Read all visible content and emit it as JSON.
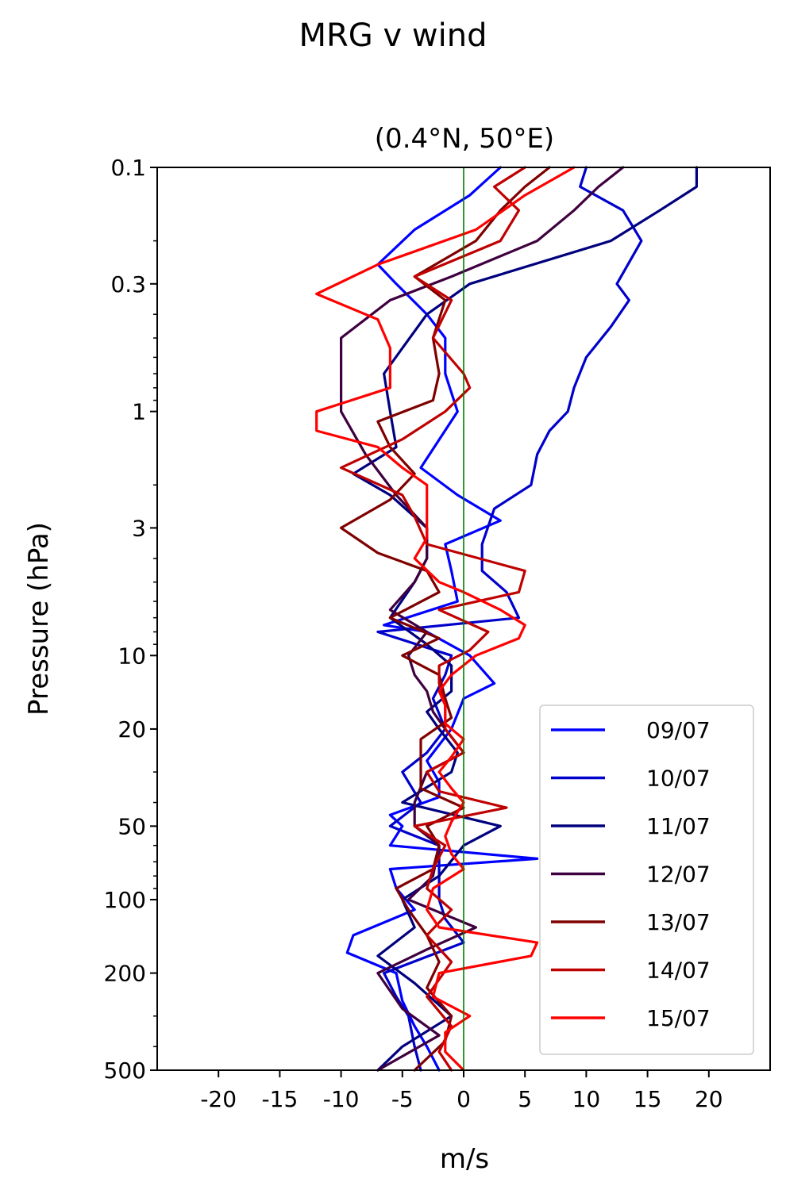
{
  "page": {
    "title": "MRG v wind"
  },
  "chart_data": {
    "type": "line",
    "title": "MRG v wind",
    "subtitle": "(0.4°N, 50°E)",
    "xlabel": "m/s",
    "ylabel": "Pressure (hPa)",
    "xlim": [
      -25,
      25
    ],
    "ylim": [
      500,
      0.1
    ],
    "yscale": "log",
    "x_ticks": [
      -20,
      -15,
      -10,
      -5,
      0,
      5,
      10,
      15,
      20
    ],
    "x_tick_labels": [
      "-20",
      "-15",
      "-10",
      "-5",
      "0",
      "5",
      "10",
      "15",
      "20"
    ],
    "y_ticks": [
      0.1,
      0.3,
      1,
      3,
      10,
      20,
      50,
      100,
      200,
      500
    ],
    "y_tick_labels": [
      "0.1",
      "0.3",
      "1",
      "3",
      "10",
      "20",
      "50",
      "100",
      "200",
      "500"
    ],
    "reference_line": {
      "x": 0,
      "color": "#008000"
    },
    "legend_position": "lower-right",
    "grid": false,
    "series": [
      {
        "name": "09/07",
        "color": "#0000ff",
        "p": [
          0.1,
          0.13,
          0.18,
          0.25,
          0.3,
          0.4,
          0.5,
          0.7,
          1.0,
          1.7,
          2.2,
          2.8,
          3.5,
          4.5,
          6,
          7.5,
          8,
          10,
          13,
          15,
          20,
          27,
          33,
          38,
          45,
          50,
          60,
          68,
          75,
          90,
          110,
          140,
          165,
          200,
          260,
          330,
          400,
          500
        ],
        "values": [
          3,
          0.5,
          -4,
          -7,
          -5.5,
          -3,
          -1.5,
          -1.5,
          -0.5,
          -3.5,
          -0.5,
          3,
          -1.5,
          -1,
          -0.5,
          -6.5,
          -3,
          0.5,
          2.5,
          0,
          -1,
          -3,
          -2,
          -2,
          -6,
          -5,
          -6,
          6,
          -6,
          -5.5,
          -4,
          -9,
          -9.5,
          -5.5,
          -5,
          -4,
          -3,
          -2
        ]
      },
      {
        "name": "10/07",
        "color": "#0000cc",
        "p": [
          0.1,
          0.12,
          0.15,
          0.2,
          0.3,
          0.35,
          0.45,
          0.6,
          0.8,
          1.0,
          1.2,
          1.5,
          2.0,
          2.5,
          3.5,
          4.5,
          5.5,
          7,
          8,
          10,
          12,
          15,
          20,
          25,
          30,
          40,
          50,
          60,
          75,
          100,
          120,
          150,
          200,
          250,
          300,
          400,
          500
        ],
        "values": [
          10,
          9.5,
          13,
          14.5,
          12.5,
          13.5,
          12,
          10,
          9,
          8.5,
          7,
          6,
          5.5,
          2.5,
          1.5,
          1.5,
          3.5,
          4.5,
          -7,
          -1,
          -1.5,
          -2.5,
          -1.5,
          -3,
          -5,
          -3.5,
          -6,
          -2,
          -2,
          -2,
          -1.5,
          0,
          -6.5,
          -5.5,
          -4.5,
          -4,
          -3.5
        ]
      },
      {
        "name": "11/07",
        "color": "#00007f",
        "p": [
          0.1,
          0.12,
          0.15,
          0.2,
          0.3,
          0.4,
          0.55,
          0.7,
          1.0,
          1.4,
          1.8,
          2.2,
          3,
          4,
          5,
          7,
          9,
          11,
          14,
          17,
          20,
          25,
          30,
          40,
          50,
          60,
          80,
          100,
          130,
          170,
          220,
          300,
          400,
          500
        ],
        "values": [
          19,
          19,
          16,
          12,
          0.5,
          -3,
          -5,
          -6.5,
          -6,
          -5.5,
          -9,
          -6,
          -3,
          -3,
          -4,
          -6,
          -3,
          -1,
          -1,
          -3,
          -2,
          -0.5,
          -1,
          -5,
          3,
          0,
          -2,
          -5,
          -4,
          -7,
          -4,
          -1,
          -5,
          -7
        ]
      },
      {
        "name": "12/07",
        "color": "#3f003f",
        "p": [
          0.1,
          0.12,
          0.15,
          0.2,
          0.28,
          0.35,
          0.5,
          0.7,
          1.0,
          1.5,
          2.2,
          3,
          4,
          5,
          6.5,
          8,
          10,
          12,
          14,
          17,
          20,
          25,
          30,
          40,
          50,
          60,
          80,
          100,
          130,
          160,
          200,
          280,
          360,
          500
        ],
        "values": [
          13,
          11,
          9,
          6,
          -1,
          -6,
          -10,
          -10,
          -10,
          -8,
          -5.5,
          -3,
          -3,
          -4,
          -6,
          -3,
          -4.5,
          -4,
          -3,
          -2.5,
          -1.5,
          0,
          -3,
          -4,
          -4,
          -2,
          -2.5,
          -4.5,
          1,
          -3,
          -7,
          -5,
          -2,
          -7
        ]
      },
      {
        "name": "13/07",
        "color": "#7f0000",
        "p": [
          0.1,
          0.12,
          0.15,
          0.2,
          0.28,
          0.35,
          0.5,
          0.7,
          0.9,
          1.1,
          1.4,
          1.8,
          2.3,
          3,
          3.8,
          4.5,
          5.5,
          7,
          8.5,
          10,
          12,
          15,
          18,
          22,
          28,
          35,
          42,
          50,
          60,
          75,
          90,
          110,
          140,
          180,
          230,
          300,
          380,
          500
        ],
        "values": [
          7,
          5,
          3,
          1,
          -4,
          -1.5,
          -2.5,
          -2,
          -2.5,
          -7,
          -6,
          -4,
          -6,
          -10,
          -7,
          -3,
          -2,
          -6,
          -2,
          -5,
          -2,
          -1.5,
          -1,
          -3.5,
          -3.5,
          -3.5,
          0,
          -3,
          -2,
          -2.5,
          -5.5,
          -4.5,
          -3,
          -2,
          -3,
          -1,
          -1.5,
          -4
        ]
      },
      {
        "name": "14/07",
        "color": "#bf0000",
        "p": [
          0.1,
          0.12,
          0.15,
          0.2,
          0.28,
          0.35,
          0.5,
          0.7,
          0.8,
          1.0,
          1.3,
          1.7,
          2.2,
          2.7,
          3.5,
          4.5,
          5.5,
          6.5,
          8,
          9.5,
          11,
          13,
          16,
          20,
          25,
          30,
          36,
          42,
          50,
          60,
          75,
          90,
          110,
          140,
          180,
          250,
          330,
          420,
          500
        ],
        "values": [
          5,
          2.5,
          4.5,
          3,
          -4,
          -1,
          -2.5,
          0,
          0.5,
          -1.5,
          -5,
          -10,
          -5,
          -4,
          -3,
          5,
          4.5,
          -2,
          2,
          0.5,
          -2,
          -2,
          -1.5,
          -1.5,
          0,
          -3,
          -2,
          3.5,
          -4,
          -1.5,
          -2.5,
          -3,
          -1,
          -3,
          -1,
          -3,
          -1,
          -2,
          -1
        ]
      },
      {
        "name": "15/07",
        "color": "#ff0000",
        "p": [
          0.1,
          0.13,
          0.18,
          0.25,
          0.33,
          0.42,
          0.55,
          0.7,
          0.8,
          1.0,
          1.2,
          1.4,
          1.7,
          2.0,
          2.4,
          2.8,
          3.3,
          4,
          5,
          5.5,
          6.5,
          7.5,
          8.5,
          10,
          12,
          14,
          16,
          19,
          22,
          26,
          30,
          35,
          40,
          48,
          55,
          65,
          75,
          90,
          110,
          130,
          150,
          170,
          200,
          250,
          300,
          350,
          420,
          500
        ],
        "values": [
          9,
          5,
          1,
          -7,
          -12,
          -7,
          -6,
          -6,
          -6,
          -12,
          -12,
          -7,
          -5,
          -3,
          -3,
          -3,
          -3,
          -4,
          -2,
          0,
          3,
          5,
          4.5,
          1,
          -1,
          -2,
          -1.5,
          -1.5,
          0,
          -1,
          -2,
          -1,
          0,
          -1,
          -1.5,
          -1,
          0,
          -2.5,
          -3,
          -2,
          6,
          5.5,
          -2,
          -2.5,
          0.5,
          -1.5,
          -1.5,
          0
        ]
      }
    ]
  }
}
